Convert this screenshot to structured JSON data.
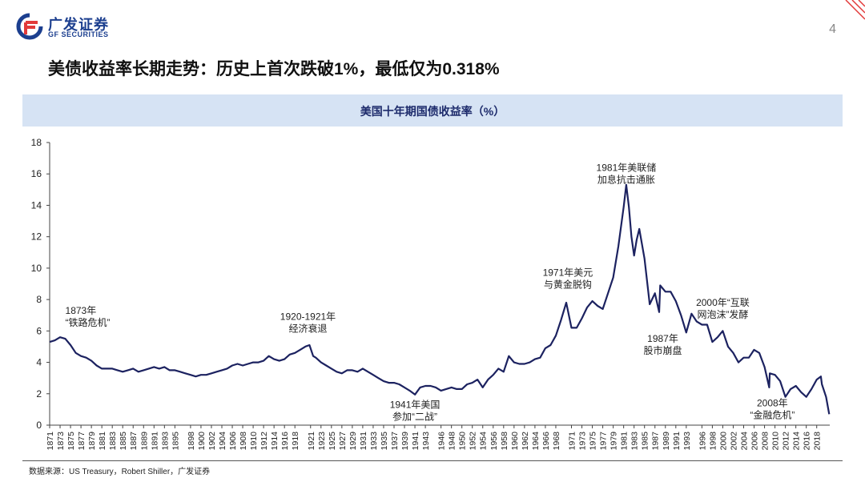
{
  "header": {
    "logo_cn": "广发证券",
    "logo_en": "GF SECURITIES",
    "page_number": "4",
    "brand_color": "#1c3f8f",
    "accent_color": "#e23a3a"
  },
  "slide_title": "美债收益率长期走势：历史上首次跌破1%，最低仅为0.318%",
  "source": "数据来源：US Treasury，Robert Shiller，广发证券",
  "chart_data": {
    "type": "line",
    "title": "美国十年期国债收益率（%）",
    "xlabel": "",
    "ylabel": "",
    "ylim": [
      0,
      18
    ],
    "xlim": [
      1871,
      2020.5
    ],
    "y_ticks": [
      0,
      2,
      4,
      6,
      8,
      10,
      12,
      14,
      16,
      18
    ],
    "x_ticks": [
      1871,
      1873,
      1875,
      1877,
      1879,
      1881,
      1883,
      1885,
      1887,
      1889,
      1891,
      1893,
      1895,
      1898,
      1900,
      1902,
      1904,
      1906,
      1908,
      1910,
      1912,
      1914,
      1916,
      1918,
      1921,
      1923,
      1925,
      1927,
      1929,
      1931,
      1933,
      1935,
      1937,
      1939,
      1941,
      1943,
      1946,
      1948,
      1950,
      1952,
      1954,
      1956,
      1958,
      1960,
      1962,
      1964,
      1966,
      1968,
      1971,
      1973,
      1975,
      1977,
      1979,
      1981,
      1983,
      1985,
      1987,
      1989,
      1991,
      1993,
      1996,
      1998,
      2000,
      2002,
      2004,
      2006,
      2008,
      2010,
      2012,
      2014,
      2016,
      2018
    ],
    "line_color": "#1c2260",
    "series": [
      {
        "name": "美国十年期国债收益率",
        "x": [
          1871,
          1872,
          1873,
          1874,
          1875,
          1876,
          1877,
          1878,
          1879,
          1880,
          1881,
          1882,
          1883,
          1884,
          1885,
          1886,
          1887,
          1888,
          1889,
          1890,
          1891,
          1892,
          1893,
          1894,
          1895,
          1896,
          1897,
          1898,
          1899,
          1900,
          1901,
          1902,
          1903,
          1904,
          1905,
          1906,
          1907,
          1908,
          1909,
          1910,
          1911,
          1912,
          1913,
          1914,
          1915,
          1916,
          1917,
          1918,
          1919,
          1920,
          1920.8,
          1921.5,
          1922,
          1923,
          1924,
          1925,
          1926,
          1927,
          1928,
          1929,
          1930,
          1931,
          1932,
          1933,
          1934,
          1935,
          1936,
          1937,
          1938,
          1939,
          1940,
          1941,
          1942,
          1943,
          1944,
          1945,
          1946,
          1947,
          1948,
          1949,
          1950,
          1951,
          1952,
          1953,
          1954,
          1955,
          1956,
          1957,
          1958,
          1959,
          1960,
          1961,
          1962,
          1963,
          1964,
          1965,
          1966,
          1967,
          1968,
          1969,
          1970,
          1971,
          1972,
          1973,
          1974,
          1975,
          1976,
          1977,
          1978,
          1979,
          1980,
          1981,
          1981.5,
          1982,
          1982.5,
          1983,
          1983.5,
          1984,
          1985,
          1986,
          1987,
          1987.8,
          1988,
          1989,
          1990,
          1991,
          1992,
          1993,
          1994,
          1995,
          1996,
          1997,
          1998,
          1999,
          2000,
          2001,
          2002,
          2003,
          2004,
          2005,
          2006,
          2007,
          2008,
          2008.9,
          2009,
          2010,
          2011,
          2012,
          2013,
          2014,
          2015,
          2016,
          2017,
          2018,
          2018.8,
          2019,
          2019.8,
          2020.4
        ],
        "values": [
          5.3,
          5.4,
          5.6,
          5.5,
          5.1,
          4.6,
          4.4,
          4.3,
          4.1,
          3.8,
          3.6,
          3.6,
          3.6,
          3.5,
          3.4,
          3.5,
          3.6,
          3.4,
          3.5,
          3.6,
          3.7,
          3.6,
          3.7,
          3.5,
          3.5,
          3.4,
          3.3,
          3.2,
          3.1,
          3.2,
          3.2,
          3.3,
          3.4,
          3.5,
          3.6,
          3.8,
          3.9,
          3.8,
          3.9,
          4.0,
          4.0,
          4.1,
          4.4,
          4.2,
          4.1,
          4.2,
          4.5,
          4.6,
          4.8,
          5.0,
          5.1,
          4.4,
          4.3,
          4.0,
          3.8,
          3.6,
          3.4,
          3.3,
          3.5,
          3.5,
          3.4,
          3.6,
          3.4,
          3.2,
          3.0,
          2.8,
          2.7,
          2.7,
          2.6,
          2.4,
          2.2,
          1.95,
          2.4,
          2.5,
          2.5,
          2.4,
          2.2,
          2.3,
          2.4,
          2.3,
          2.3,
          2.6,
          2.7,
          2.9,
          2.4,
          2.9,
          3.2,
          3.6,
          3.4,
          4.4,
          4.0,
          3.9,
          3.9,
          4.0,
          4.2,
          4.3,
          4.9,
          5.1,
          5.7,
          6.7,
          7.8,
          6.2,
          6.2,
          6.8,
          7.5,
          7.9,
          7.6,
          7.4,
          8.4,
          9.4,
          11.4,
          13.9,
          15.3,
          13.9,
          12.0,
          10.8,
          11.8,
          12.5,
          10.6,
          7.7,
          8.4,
          7.2,
          8.9,
          8.5,
          8.5,
          7.9,
          7.0,
          5.9,
          7.1,
          6.6,
          6.4,
          6.4,
          5.3,
          5.6,
          6.0,
          5.0,
          4.6,
          4.0,
          4.3,
          4.3,
          4.8,
          4.6,
          3.7,
          2.4,
          3.3,
          3.2,
          2.8,
          1.8,
          2.3,
          2.5,
          2.1,
          1.8,
          2.3,
          2.9,
          3.1,
          2.6,
          1.8,
          0.7
        ]
      }
    ],
    "annotations": [
      {
        "line1": "1873年",
        "line2": "“铁路危机”",
        "x": 1874,
        "y": 7.1,
        "anchor": "start"
      },
      {
        "line1": "1920-1921年",
        "line2": "经济衰退",
        "x": 1920.5,
        "y": 6.7,
        "anchor": "middle"
      },
      {
        "line1": "1941年美国",
        "line2": "参加“二战”",
        "x": 1941,
        "y": 1.1,
        "anchor": "middle"
      },
      {
        "line1": "1971年美元",
        "line2": "与黄金脱钩",
        "x": 1970.3,
        "y": 9.5,
        "anchor": "middle"
      },
      {
        "line1": "1981年美联储",
        "line2": "加息抗击通胀",
        "x": 1981.5,
        "y": 16.2,
        "anchor": "middle"
      },
      {
        "line1": "1987年",
        "line2": "股市崩盘",
        "x": 1988.5,
        "y": 5.3,
        "anchor": "middle"
      },
      {
        "line1": "2000年“互联",
        "line2": "网泡沫”发酵",
        "x": 2000,
        "y": 7.6,
        "anchor": "middle"
      },
      {
        "line1": "2008年",
        "line2": "“金融危机”",
        "x": 2009.5,
        "y": 1.2,
        "anchor": "middle"
      }
    ]
  }
}
